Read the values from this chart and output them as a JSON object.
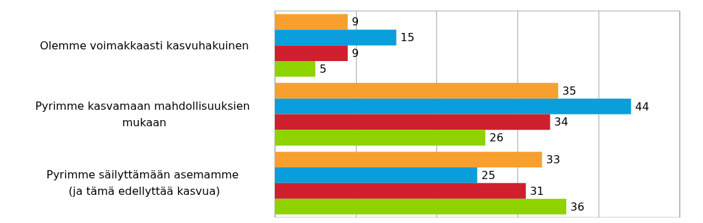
{
  "chart_data": {
    "type": "bar",
    "orientation": "horizontal",
    "categories": [
      "Olemme voimakkaasti kasvuhakuinen",
      "Pyrimme kasvamaan mahdollisuuksien mukaan",
      "Pyrimme säilyttämään asemamme (ja tämä edellyttää kasvua)"
    ],
    "series": [
      {
        "color": "#f7a030",
        "values": [
          9,
          35,
          33
        ]
      },
      {
        "color": "#0a9fdc",
        "values": [
          15,
          44,
          25
        ]
      },
      {
        "color": "#d01f2e",
        "values": [
          9,
          34,
          31
        ]
      },
      {
        "color": "#8ed300",
        "values": [
          5,
          26,
          36
        ]
      }
    ],
    "xlim": [
      0,
      50
    ],
    "xticks": [
      {
        "value": 0,
        "label": null
      },
      {
        "value": 10,
        "label": null
      },
      {
        "value": 20,
        "label": null
      },
      {
        "value": 30,
        "label": null
      },
      {
        "value": 40,
        "label": null
      },
      {
        "value": 50,
        "label": null
      }
    ],
    "tick_labels": "y",
    "grid": "x",
    "data_labels": true
  }
}
